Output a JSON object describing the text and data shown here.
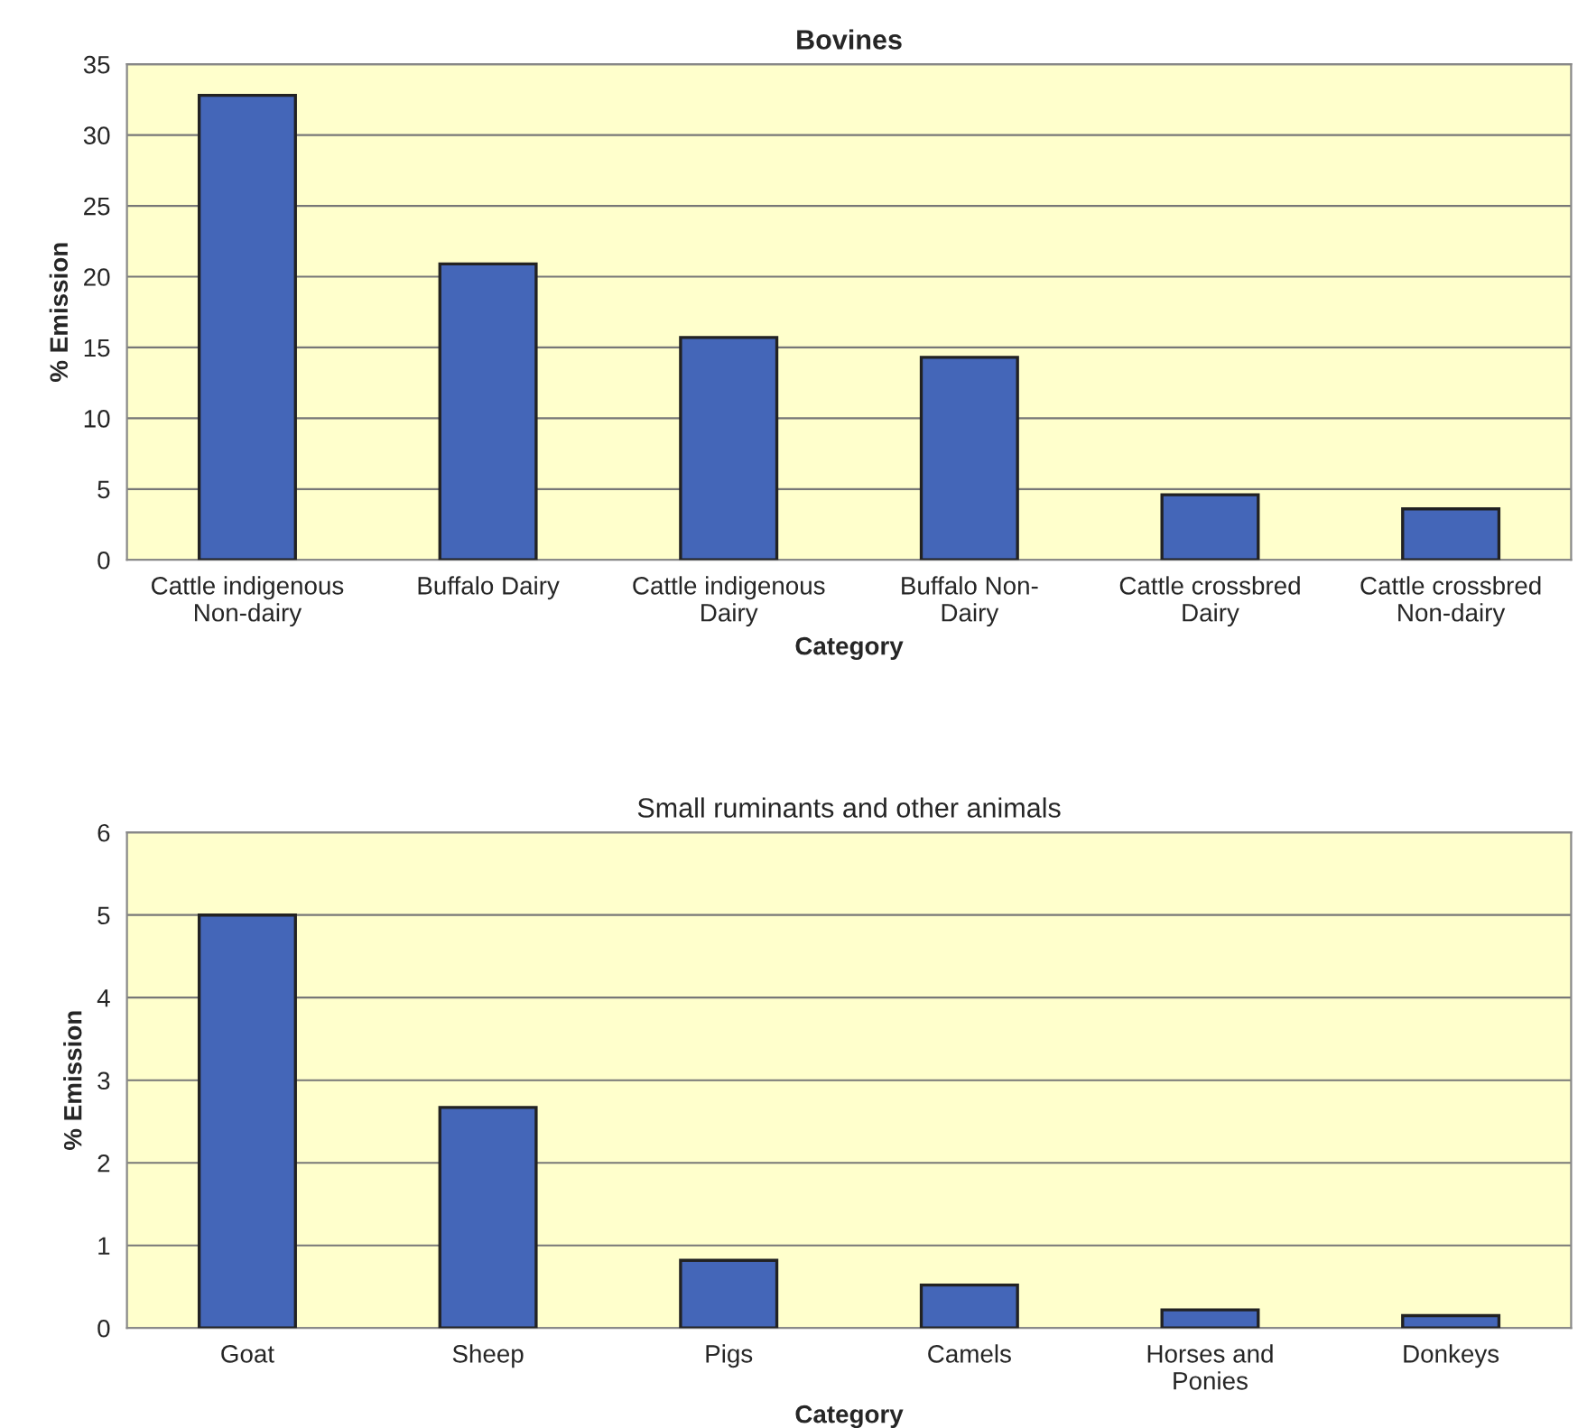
{
  "chart_data": [
    {
      "type": "bar",
      "title": "Bovines",
      "xlabel": "Category",
      "ylabel": "% Emission",
      "categories": [
        "Cattle indigenous\nNon-dairy",
        "Buffalo Dairy",
        "Cattle indigenous\nDairy",
        "Buffalo Non-\nDairy",
        "Cattle crossbred\nDairy",
        "Cattle crossbred\nNon-dairy"
      ],
      "series": [
        {
          "color": "#4466b8",
          "values": [
            32.8,
            20.9,
            15.7,
            14.3,
            4.6,
            3.6
          ]
        }
      ],
      "ylim": [
        0,
        35
      ],
      "yticks": [
        0,
        5,
        10,
        15,
        20,
        25,
        30,
        35
      ],
      "grid": "y",
      "legend": false
    },
    {
      "type": "bar",
      "title": "Small ruminants and other animals",
      "xlabel": "Category",
      "ylabel": "% Emission",
      "categories": [
        "Goat",
        "Sheep",
        "Pigs",
        "Camels",
        "Horses and\nPonies",
        "Donkeys"
      ],
      "series": [
        {
          "color": "#4466b8",
          "values": [
            5.0,
            2.67,
            0.82,
            0.52,
            0.22,
            0.15
          ]
        }
      ],
      "ylim": [
        0,
        6
      ],
      "yticks": [
        0,
        1,
        2,
        3,
        4,
        5,
        6
      ],
      "grid": "y",
      "legend": false
    }
  ]
}
